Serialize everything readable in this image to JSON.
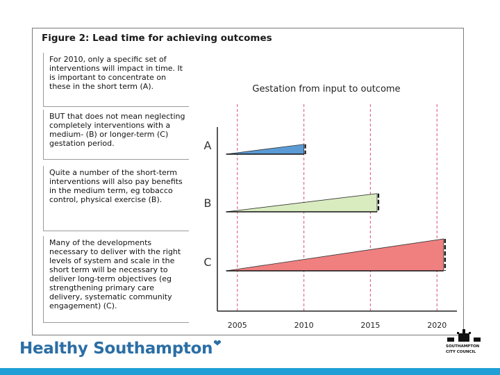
{
  "figure": {
    "title": "Figure 2: Lead time for achieving outcomes",
    "text_boxes": [
      "For 2010, only a specific set of interventions will impact in time. It is important to concentrate on these in the short term (A).",
      "BUT that does not mean neglecting completely interventions with a medium- (B) or longer-term (C) gestation period.",
      "Quite a number of the short-term interventions will also pay benefits in the medium term, eg tobacco control, physical exercise (B).",
      "Many of the developments necessary to deliver with the right levels of system and scale in the short term will be necessary to deliver long-term objectives (eg strengthening primary care delivery, systematic community engagement) (C)."
    ]
  },
  "chart_data": {
    "type": "area",
    "title": "Gestation from input to outcome",
    "x_ticks": [
      "2005",
      "2010",
      "2015",
      "2020"
    ],
    "xlim": [
      2003.5,
      2021.5
    ],
    "gridlines_at": [
      2005,
      2010,
      2015,
      2020
    ],
    "series": [
      {
        "name": "A",
        "start": 2004,
        "end": 2010,
        "color": "#5b9bd5",
        "label": "A"
      },
      {
        "name": "B",
        "start": 2004,
        "end": 2015.5,
        "color": "#d9ecbf",
        "label": "B"
      },
      {
        "name": "C",
        "start": 2004,
        "end": 2020.5,
        "color": "#f08080",
        "label": "C"
      }
    ]
  },
  "footer": {
    "brand": "Healthy Southampton",
    "council_line1": "SOUTHAMPTON",
    "council_line2": "CITY COUNCIL"
  },
  "colors": {
    "brand_blue": "#2b6ea5",
    "bar_blue": "#1f9fd6",
    "gridline": "#e06a8a"
  }
}
